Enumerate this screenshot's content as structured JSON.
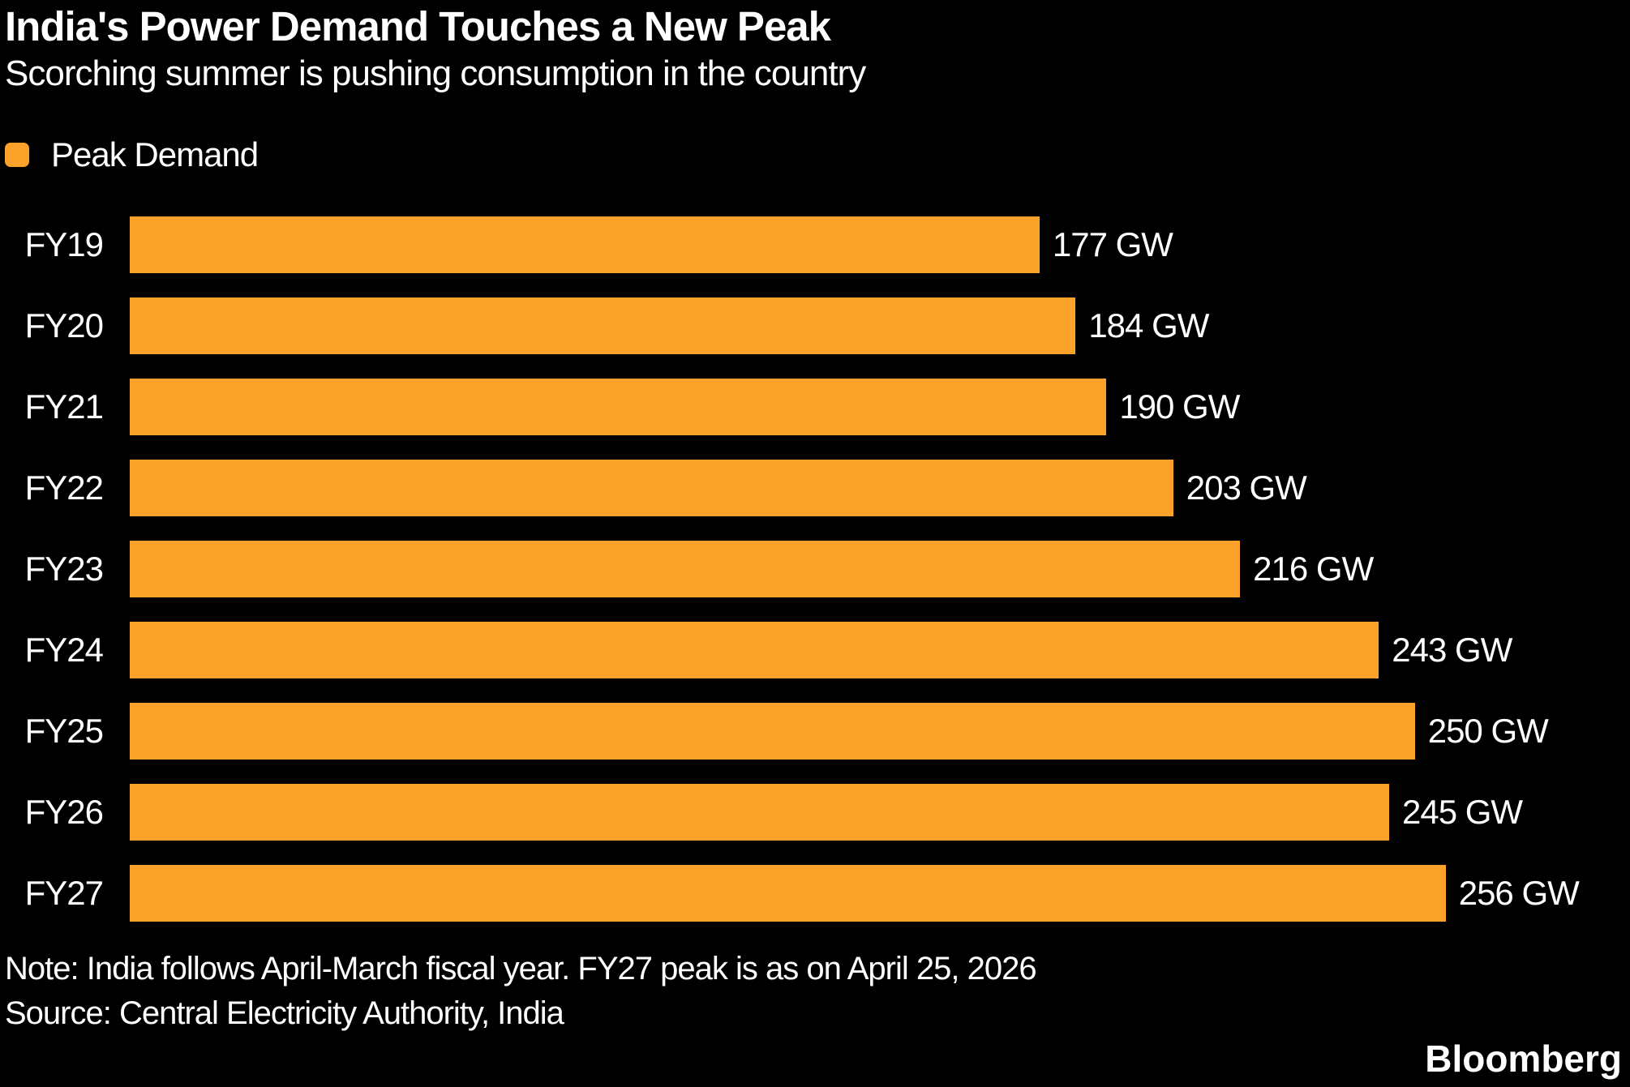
{
  "header": {
    "title": "India's Power Demand Touches a New Peak",
    "subtitle": "Scorching summer is pushing consumption in the country"
  },
  "legend": {
    "items": [
      {
        "label": "Peak Demand",
        "color": "#FBA22B"
      }
    ]
  },
  "chart_data": {
    "type": "bar",
    "orientation": "horizontal",
    "title": "India's Power Demand Touches a New Peak",
    "subtitle": "Scorching summer is pushing consumption in the country",
    "series_name": "Peak Demand",
    "categories": [
      "FY19",
      "FY20",
      "FY21",
      "FY22",
      "FY23",
      "FY24",
      "FY25",
      "FY26",
      "FY27"
    ],
    "values": [
      177,
      184,
      190,
      203,
      216,
      243,
      250,
      245,
      256
    ],
    "unit": "GW",
    "value_labels": [
      "177 GW",
      "184 GW",
      "190 GW",
      "203 GW",
      "216 GW",
      "243 GW",
      "250 GW",
      "245 GW",
      "256 GW"
    ],
    "xlim": [
      0,
      256
    ],
    "bar_color": "#FBA22B",
    "grid": false,
    "axis_lines": false,
    "legend_position": "top-left"
  },
  "footer": {
    "note": "Note: India follows April-March fiscal year. FY27 peak is as on April 25, 2026",
    "source": "Source: Central Electricity Authority, India",
    "brand": "Bloomberg"
  },
  "colors": {
    "background": "#000000",
    "text": "#FFFFFF",
    "accent": "#FBA22B"
  }
}
